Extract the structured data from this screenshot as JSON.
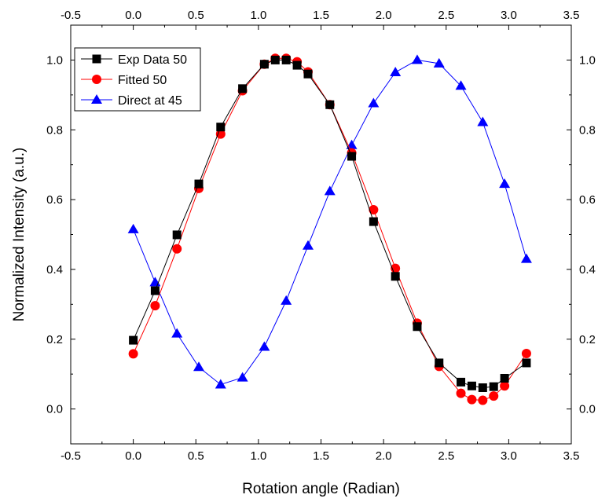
{
  "chart_data": {
    "type": "line",
    "xlabel": "Rotation angle (Radian)",
    "ylabel": "Normalized Intensity (a.u.)",
    "xlim": [
      -0.5,
      3.5
    ],
    "ylim": [
      -0.1,
      1.1
    ],
    "x_ticks": [
      "-0.5",
      "0.0",
      "0.5",
      "1.0",
      "1.5",
      "2.0",
      "2.5",
      "3.0",
      "3.5"
    ],
    "y_ticks": [
      "0.0",
      "0.2",
      "0.4",
      "0.6",
      "0.8",
      "1.0"
    ],
    "top_axis_mirrors_bottom": true,
    "right_axis_mirrors_left": true,
    "grid": false,
    "legend_position": "top-left",
    "series": [
      {
        "name": "Exp Data 50",
        "color": "#000000",
        "marker": "square",
        "x": [
          0.0,
          0.1745,
          0.349,
          0.5236,
          0.6981,
          0.8727,
          1.0472,
          1.1345,
          1.2217,
          1.309,
          1.3963,
          1.5708,
          1.7453,
          1.9199,
          2.0944,
          2.2689,
          2.4435,
          2.618,
          2.7053,
          2.7925,
          2.8798,
          2.967,
          3.1416
        ],
        "y": [
          0.197,
          0.339,
          0.499,
          0.645,
          0.808,
          0.918,
          0.988,
          1.0,
          1.0,
          0.985,
          0.96,
          0.872,
          0.724,
          0.537,
          0.38,
          0.236,
          0.132,
          0.077,
          0.066,
          0.061,
          0.064,
          0.088,
          0.132
        ]
      },
      {
        "name": "Fitted 50",
        "color": "#ff0000",
        "marker": "circle",
        "x": [
          0.0,
          0.1745,
          0.349,
          0.5236,
          0.6981,
          0.8727,
          1.0472,
          1.1345,
          1.2217,
          1.309,
          1.3963,
          1.5708,
          1.7453,
          1.9199,
          2.0944,
          2.2689,
          2.4435,
          2.618,
          2.7053,
          2.7925,
          2.8798,
          2.967,
          3.1416
        ],
        "y": [
          0.158,
          0.296,
          0.459,
          0.632,
          0.788,
          0.912,
          0.988,
          1.005,
          1.005,
          0.995,
          0.966,
          0.872,
          0.734,
          0.571,
          0.403,
          0.246,
          0.122,
          0.045,
          0.027,
          0.025,
          0.037,
          0.066,
          0.159
        ]
      },
      {
        "name": "Direct at 45",
        "color": "#0000ff",
        "marker": "triangle",
        "x": [
          0.0,
          0.1745,
          0.349,
          0.5236,
          0.6981,
          0.8727,
          1.0472,
          1.2217,
          1.3963,
          1.5708,
          1.7453,
          1.9199,
          2.0944,
          2.2689,
          2.4435,
          2.618,
          2.7925,
          2.967,
          3.1416
        ],
        "y": [
          0.515,
          0.363,
          0.216,
          0.12,
          0.07,
          0.09,
          0.178,
          0.31,
          0.468,
          0.624,
          0.756,
          0.876,
          0.965,
          1.0,
          0.99,
          0.926,
          0.822,
          0.645,
          0.43
        ]
      }
    ]
  }
}
